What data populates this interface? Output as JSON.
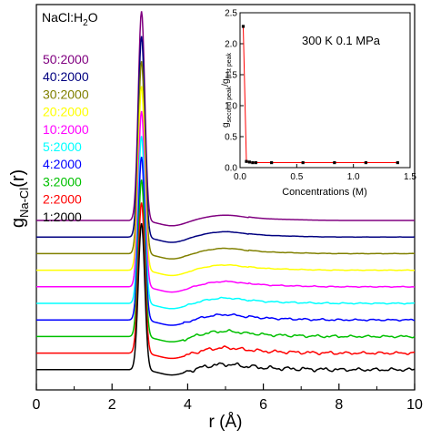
{
  "chart_data": [
    {
      "type": "line",
      "panel": "main",
      "system_label": {
        "text": "NaCl:H",
        "sub": "2",
        "rest": "O"
      },
      "xlabel": "r (Å)",
      "ylabel": {
        "main": "g",
        "sub": "Na-Cl",
        "rest": "(r)"
      },
      "xlim": [
        0,
        10
      ],
      "xticks": [
        0,
        2,
        4,
        6,
        8,
        10
      ],
      "grid": false,
      "legend_position": "left, stacked top to bottom",
      "series": [
        {
          "name": "50:2000",
          "color": "#800080",
          "offset": 9,
          "peak1": 1.0,
          "peak2": 0.11,
          "noise": 0.0
        },
        {
          "name": "40:2000",
          "color": "#000080",
          "offset": 8,
          "peak1": 0.96,
          "peak2": 0.11,
          "noise": 0.06
        },
        {
          "name": "30:2000",
          "color": "#808000",
          "offset": 7,
          "peak1": 0.92,
          "peak2": 0.11,
          "noise": 0.1
        },
        {
          "name": "20:2000",
          "color": "#ffff00",
          "offset": 6,
          "peak1": 0.88,
          "peak2": 0.11,
          "noise": 0.14
        },
        {
          "name": "10:2000",
          "color": "#ff00ff",
          "offset": 5,
          "peak1": 0.84,
          "peak2": 0.11,
          "noise": 0.2
        },
        {
          "name": "5:2000",
          "color": "#00ffff",
          "offset": 4,
          "peak1": 0.8,
          "peak2": 0.11,
          "noise": 0.3
        },
        {
          "name": "4:2000",
          "color": "#0000ff",
          "offset": 3,
          "peak1": 0.78,
          "peak2": 0.11,
          "noise": 0.4
        },
        {
          "name": "3:2000",
          "color": "#00c000",
          "offset": 2,
          "peak1": 0.75,
          "peak2": 0.11,
          "noise": 0.55
        },
        {
          "name": "2:2000",
          "color": "#ff0000",
          "offset": 1,
          "peak1": 0.72,
          "peak2": 0.11,
          "noise": 0.65
        },
        {
          "name": "1:2000",
          "color": "#000000",
          "offset": 0,
          "peak1": 0.7,
          "peak2": 0.11,
          "noise": 0.8
        }
      ]
    },
    {
      "type": "scatter",
      "panel": "inset",
      "annotation": "300 K 0.1 MPa",
      "xlabel": "Concentrations (M)",
      "ylabel": {
        "main": "g",
        "sub1": "second peak",
        "mid": "/g",
        "sub2": "first peak"
      },
      "xlim": [
        0,
        1.5
      ],
      "ylim": [
        0,
        2.5
      ],
      "xticks": [
        "0.0",
        "0.5",
        "1.0",
        "1.5"
      ],
      "yticks": [
        "0.0",
        "0.5",
        "1.0",
        "1.5",
        "2.0",
        "2.5"
      ],
      "point_color": "#000000",
      "fit_color": "#ff0000",
      "points": [
        {
          "x": 0.028,
          "y": 2.28
        },
        {
          "x": 0.056,
          "y": 0.1
        },
        {
          "x": 0.083,
          "y": 0.09
        },
        {
          "x": 0.111,
          "y": 0.08
        },
        {
          "x": 0.139,
          "y": 0.08
        },
        {
          "x": 0.278,
          "y": 0.08
        },
        {
          "x": 0.555,
          "y": 0.08
        },
        {
          "x": 0.833,
          "y": 0.08
        },
        {
          "x": 1.11,
          "y": 0.08
        },
        {
          "x": 1.39,
          "y": 0.08
        }
      ]
    }
  ]
}
